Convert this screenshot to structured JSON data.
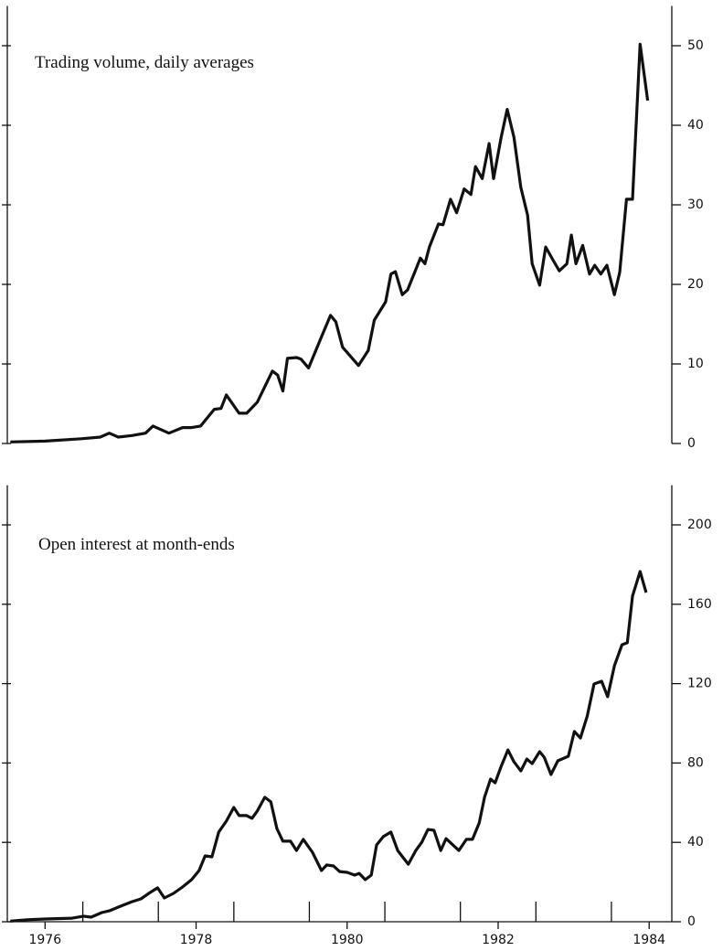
{
  "chart_data": [
    {
      "type": "line",
      "title": "Trading volume, daily averages",
      "color": "#111111",
      "xlim": [
        1975.5,
        1984.3
      ],
      "ylim": [
        0,
        55
      ],
      "yticks": [
        0,
        10,
        20,
        30,
        40,
        50
      ],
      "grid": false,
      "x": [
        1975.54,
        1976.0,
        1976.48,
        1976.73,
        1976.85,
        1976.97,
        1977.15,
        1977.33,
        1977.43,
        1977.64,
        1977.82,
        1977.94,
        1978.06,
        1978.24,
        1978.33,
        1978.4,
        1978.57,
        1978.67,
        1978.81,
        1979.01,
        1979.08,
        1979.15,
        1979.21,
        1979.33,
        1979.39,
        1979.49,
        1979.66,
        1979.78,
        1979.85,
        1979.94,
        1980.15,
        1980.28,
        1980.36,
        1980.51,
        1980.58,
        1980.64,
        1980.73,
        1980.8,
        1980.97,
        1981.03,
        1981.09,
        1981.21,
        1981.27,
        1981.37,
        1981.45,
        1981.55,
        1981.64,
        1981.7,
        1981.79,
        1981.88,
        1981.94,
        1982.04,
        1982.12,
        1982.21,
        1982.3,
        1982.39,
        1982.45,
        1982.55,
        1982.63,
        1982.73,
        1982.81,
        1982.91,
        1982.97,
        1983.03,
        1983.12,
        1983.21,
        1983.28,
        1983.36,
        1983.44,
        1983.54,
        1983.61,
        1983.7,
        1983.78,
        1983.88,
        1983.98
      ],
      "values": [
        0.2,
        0.3,
        0.6,
        0.8,
        1.3,
        0.8,
        1.0,
        1.3,
        2.2,
        1.3,
        2.0,
        2.0,
        2.2,
        4.3,
        4.4,
        6.1,
        3.8,
        3.8,
        5.2,
        9.1,
        8.6,
        6.6,
        10.7,
        10.8,
        10.6,
        9.5,
        13.4,
        16.1,
        15.3,
        12.1,
        9.8,
        11.7,
        15.5,
        17.8,
        21.3,
        21.6,
        18.7,
        19.3,
        23.3,
        22.6,
        24.7,
        27.6,
        27.5,
        30.7,
        29.0,
        32.0,
        31.3,
        34.8,
        33.3,
        37.7,
        33.3,
        38.5,
        42.0,
        38.5,
        32.2,
        28.7,
        22.6,
        19.9,
        24.7,
        23.0,
        21.7,
        22.6,
        26.2,
        22.6,
        24.9,
        21.3,
        22.4,
        21.3,
        22.4,
        18.7,
        21.5,
        30.7,
        30.7,
        50.2,
        43.1
      ]
    },
    {
      "type": "line",
      "title": "Open interest at month-ends",
      "color": "#111111",
      "xlim": [
        1975.5,
        1984.3
      ],
      "ylim": [
        0,
        220
      ],
      "yticks": [
        0,
        40,
        80,
        120,
        160,
        200
      ],
      "grid": false,
      "xticks": [
        {
          "value": 1976,
          "label": "1976"
        },
        {
          "value": 1978,
          "label": "1978"
        },
        {
          "value": 1980,
          "label": "1980"
        },
        {
          "value": 1982,
          "label": "1982"
        },
        {
          "value": 1984,
          "label": "1984"
        }
      ],
      "xminorticks": [
        1976.5,
        1977.5,
        1978.5,
        1979.5,
        1980.5,
        1981.5,
        1982.5,
        1983.5
      ],
      "x": [
        1975.54,
        1975.76,
        1976.0,
        1976.36,
        1976.51,
        1976.61,
        1976.75,
        1976.85,
        1977.03,
        1977.15,
        1977.27,
        1977.39,
        1977.49,
        1977.58,
        1977.7,
        1977.82,
        1977.94,
        1978.04,
        1978.12,
        1978.21,
        1978.3,
        1978.4,
        1978.5,
        1978.57,
        1978.67,
        1978.74,
        1978.81,
        1978.91,
        1978.99,
        1979.07,
        1979.15,
        1979.25,
        1979.33,
        1979.42,
        1979.54,
        1979.66,
        1979.73,
        1979.82,
        1979.9,
        1980.0,
        1980.1,
        1980.16,
        1980.24,
        1980.32,
        1980.39,
        1980.48,
        1980.58,
        1980.67,
        1980.81,
        1980.91,
        1980.99,
        1981.07,
        1981.15,
        1981.24,
        1981.31,
        1981.48,
        1981.58,
        1981.66,
        1981.75,
        1981.82,
        1981.9,
        1981.96,
        1982.04,
        1982.13,
        1982.21,
        1982.3,
        1982.38,
        1982.45,
        1982.55,
        1982.61,
        1982.7,
        1982.79,
        1982.93,
        1983.01,
        1983.09,
        1983.18,
        1983.27,
        1983.37,
        1983.45,
        1983.54,
        1983.64,
        1983.71,
        1983.78,
        1983.88,
        1983.96
      ],
      "values": [
        0.3,
        1.0,
        1.4,
        1.8,
        2.8,
        2.3,
        4.6,
        5.5,
        8.3,
        10.1,
        11.5,
        14.7,
        17.1,
        12.0,
        14.3,
        17.5,
        21.2,
        25.8,
        33.2,
        32.7,
        45.2,
        50.7,
        57.6,
        53.5,
        53.5,
        52.1,
        55.8,
        62.7,
        60.4,
        47.0,
        40.6,
        40.6,
        35.9,
        41.5,
        35.0,
        25.8,
        28.6,
        28.1,
        25.3,
        24.9,
        23.5,
        24.4,
        21.2,
        23.5,
        38.7,
        42.9,
        45.2,
        35.9,
        29.0,
        35.9,
        40.1,
        46.5,
        46.1,
        35.9,
        41.9,
        35.9,
        41.5,
        41.5,
        49.8,
        62.7,
        71.9,
        70.0,
        78.3,
        86.6,
        80.6,
        76.0,
        82.0,
        79.7,
        85.7,
        82.9,
        74.2,
        81.1,
        83.4,
        95.9,
        92.6,
        103.7,
        119.8,
        121.2,
        113.4,
        129.0,
        139.6,
        140.6,
        164.1,
        176.5,
        165.9
      ]
    }
  ]
}
